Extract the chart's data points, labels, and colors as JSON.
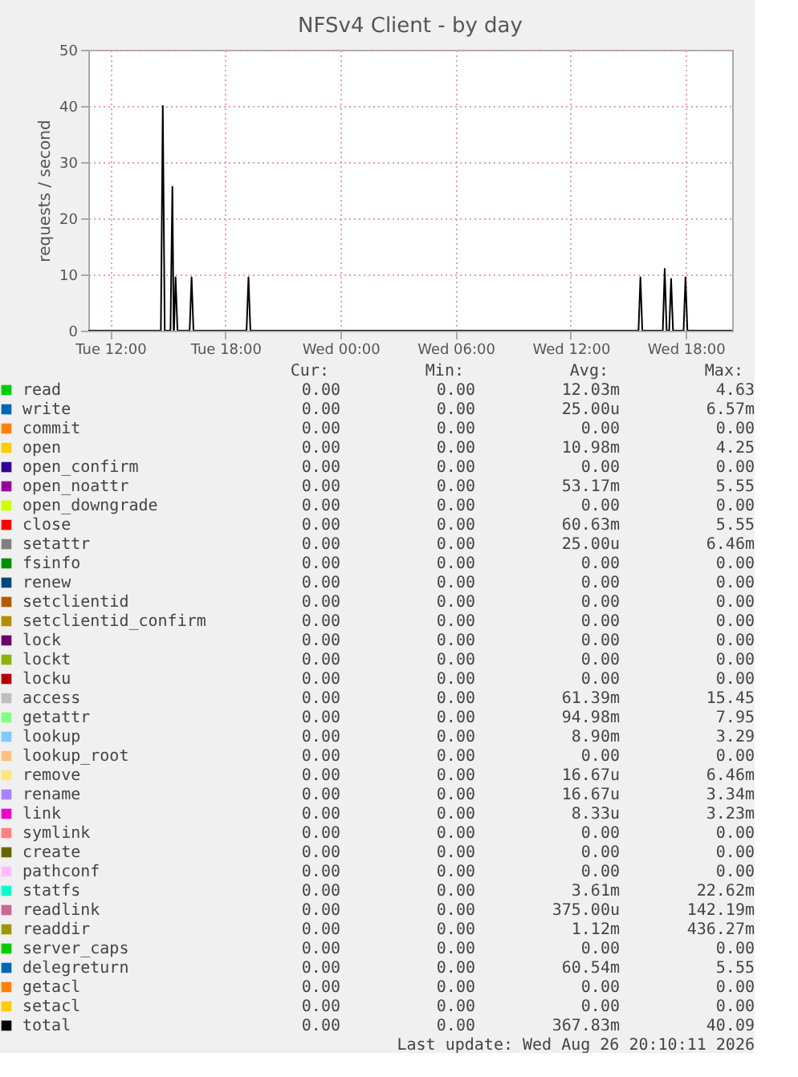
{
  "chart_data": {
    "type": "line",
    "title": "NFSv4 Client - by day",
    "ylabel": "requests / second",
    "xlim": [
      "2026-08-25T10:51",
      "2026-08-26T20:25"
    ],
    "ylim": [
      0,
      50
    ],
    "yticks": [
      0,
      10,
      20,
      30,
      40,
      50
    ],
    "xticks": [
      {
        "value": "2026-08-25T12:00",
        "label": "Tue 12:00"
      },
      {
        "value": "2026-08-25T18:00",
        "label": "Tue 18:00"
      },
      {
        "value": "2026-08-26T00:00",
        "label": "Wed 00:00"
      },
      {
        "value": "2026-08-26T06:00",
        "label": "Wed 06:00"
      },
      {
        "value": "2026-08-26T12:00",
        "label": "Wed 12:00"
      },
      {
        "value": "2026-08-26T18:00",
        "label": "Wed 18:00"
      }
    ],
    "grid": true,
    "legend": "bottom",
    "marker": "none",
    "line_style": "solid",
    "series": [
      {
        "name": "read",
        "color": "#00cc00",
        "values": [
          null,
          null
        ]
      },
      {
        "name": "write",
        "color": "#0066b3",
        "values": [
          null,
          null
        ]
      },
      {
        "name": "commit",
        "color": "#ff8000",
        "values": [
          null,
          null
        ]
      },
      {
        "name": "open",
        "color": "#ffcc00",
        "values": [
          null,
          null
        ]
      },
      {
        "name": "open_confirm",
        "color": "#330099",
        "values": [
          null,
          null
        ]
      },
      {
        "name": "open_noattr",
        "color": "#990099",
        "values": [
          null,
          null
        ]
      },
      {
        "name": "open_downgrade",
        "color": "#ccff00",
        "values": [
          null,
          null
        ]
      },
      {
        "name": "close",
        "color": "#ff0000",
        "values": [
          null,
          null
        ]
      },
      {
        "name": "setattr",
        "color": "#808080",
        "values": [
          null,
          null
        ]
      },
      {
        "name": "fsinfo",
        "color": "#008f00",
        "values": [
          null,
          null
        ]
      },
      {
        "name": "renew",
        "color": "#00487d",
        "values": [
          null,
          null
        ]
      },
      {
        "name": "setclientid",
        "color": "#b35a00",
        "values": [
          null,
          null
        ]
      },
      {
        "name": "setclientid_confirm",
        "color": "#b38f00",
        "values": [
          null,
          null
        ]
      },
      {
        "name": "lock",
        "color": "#6b006b",
        "values": [
          null,
          null
        ]
      },
      {
        "name": "lockt",
        "color": "#8fb300",
        "values": [
          null,
          null
        ]
      },
      {
        "name": "locku",
        "color": "#b30000",
        "values": [
          null,
          null
        ]
      },
      {
        "name": "access",
        "color": "#bebebe",
        "values": [
          null,
          null
        ]
      },
      {
        "name": "getattr",
        "color": "#80ff80",
        "values": [
          null,
          null
        ]
      },
      {
        "name": "lookup",
        "color": "#80c9ff",
        "values": [
          null,
          null
        ]
      },
      {
        "name": "lookup_root",
        "color": "#ffc080",
        "values": [
          null,
          null
        ]
      },
      {
        "name": "remove",
        "color": "#ffe680",
        "values": [
          null,
          null
        ]
      },
      {
        "name": "rename",
        "color": "#aa80ff",
        "values": [
          null,
          null
        ]
      },
      {
        "name": "link",
        "color": "#ee00cc",
        "values": [
          null,
          null
        ]
      },
      {
        "name": "symlink",
        "color": "#ff8080",
        "values": [
          null,
          null
        ]
      },
      {
        "name": "create",
        "color": "#666600",
        "values": [
          null,
          null
        ]
      },
      {
        "name": "pathconf",
        "color": "#ffbfff",
        "values": [
          null,
          null
        ]
      },
      {
        "name": "statfs",
        "color": "#00ffcc",
        "values": [
          null,
          null
        ]
      },
      {
        "name": "readlink",
        "color": "#cc6699",
        "values": [
          null,
          null
        ]
      },
      {
        "name": "readdir",
        "color": "#999900",
        "values": [
          null,
          null
        ]
      },
      {
        "name": "server_caps",
        "color": "#00cc00",
        "values": [
          null,
          null
        ]
      },
      {
        "name": "delegreturn",
        "color": "#0066b3",
        "values": [
          null,
          null
        ]
      },
      {
        "name": "getacl",
        "color": "#ff8000",
        "values": [
          null,
          null
        ]
      },
      {
        "name": "setacl",
        "color": "#ffcc00",
        "values": [
          null,
          null
        ]
      },
      {
        "name": "total",
        "color": "#000000",
        "x": [
          "2026-08-25T10:51",
          "2026-08-25T14:38",
          "2026-08-25T14:44",
          "2026-08-25T14:50",
          "2026-08-25T15:08",
          "2026-08-25T15:14",
          "2026-08-25T15:18",
          "2026-08-25T15:19",
          "2026-08-25T15:24",
          "2026-08-25T15:30",
          "2026-08-25T16:08",
          "2026-08-25T16:14",
          "2026-08-25T16:20",
          "2026-08-25T19:06",
          "2026-08-25T19:12",
          "2026-08-25T19:18",
          "2026-08-26T15:32",
          "2026-08-26T15:38",
          "2026-08-26T15:44",
          "2026-08-26T16:48",
          "2026-08-26T16:54",
          "2026-08-26T17:00",
          "2026-08-26T17:08",
          "2026-08-26T17:14",
          "2026-08-26T17:20",
          "2026-08-26T17:53",
          "2026-08-26T17:59",
          "2026-08-26T18:05",
          "2026-08-26T20:25"
        ],
        "values": [
          0,
          0,
          40,
          0,
          0,
          25.6,
          0,
          0,
          9.5,
          0,
          0,
          9.5,
          0,
          0,
          9.5,
          0,
          0,
          9.5,
          0,
          0,
          11,
          0,
          0,
          9.2,
          0,
          0,
          9.5,
          0,
          0
        ]
      }
    ],
    "annotations": [
      "Cur:",
      "Min:",
      "Avg:",
      "Max:",
      "0.00",
      "0.00",
      "12.03m",
      "4.63",
      "0.00",
      "0.00",
      "25.00u",
      "6.57m",
      "0.00",
      "0.00",
      "0.00",
      "0.00",
      "0.00",
      "0.00",
      "10.98m",
      "4.25",
      "0.00",
      "0.00",
      "0.00",
      "0.00",
      "0.00",
      "0.00",
      "53.17m",
      "5.55",
      "0.00",
      "0.00",
      "0.00",
      "0.00",
      "0.00",
      "0.00",
      "60.63m",
      "5.55",
      "0.00",
      "0.00",
      "25.00u",
      "6.46m",
      "0.00",
      "0.00",
      "0.00",
      "0.00",
      "0.00",
      "0.00",
      "0.00",
      "0.00",
      "0.00",
      "0.00",
      "0.00",
      "0.00",
      "0.00",
      "0.00",
      "0.00",
      "0.00",
      "0.00",
      "0.00",
      "0.00",
      "0.00",
      "0.00",
      "0.00",
      "0.00",
      "0.00",
      "0.00",
      "0.00",
      "0.00",
      "0.00",
      "0.00",
      "0.00",
      "61.39m",
      "15.45",
      "0.00",
      "0.00",
      "94.98m",
      "7.95",
      "0.00",
      "0.00",
      "8.90m",
      "3.29",
      "0.00",
      "0.00",
      "0.00",
      "0.00",
      "0.00",
      "0.00",
      "16.67u",
      "6.46m",
      "0.00",
      "0.00",
      "16.67u",
      "3.34m",
      "0.00",
      "0.00",
      "8.33u",
      "3.23m",
      "0.00",
      "0.00",
      "0.00",
      "0.00",
      "0.00",
      "0.00",
      "0.00",
      "0.00",
      "0.00",
      "0.00",
      "0.00",
      "0.00",
      "0.00",
      "0.00",
      "3.61m",
      "22.62m",
      "0.00",
      "0.00",
      "375.00u",
      "142.19m",
      "0.00",
      "0.00",
      "1.12m",
      "436.27m",
      "0.00",
      "0.00",
      "0.00",
      "0.00",
      "0.00",
      "0.00",
      "60.54m",
      "5.55",
      "0.00",
      "0.00",
      "0.00",
      "0.00",
      "0.00",
      "0.00",
      "0.00",
      "0.00",
      "0.00",
      "0.00",
      "367.83m",
      "40.09",
      "Last update: Wed Aug 26 20:10:11 2026"
    ]
  }
}
